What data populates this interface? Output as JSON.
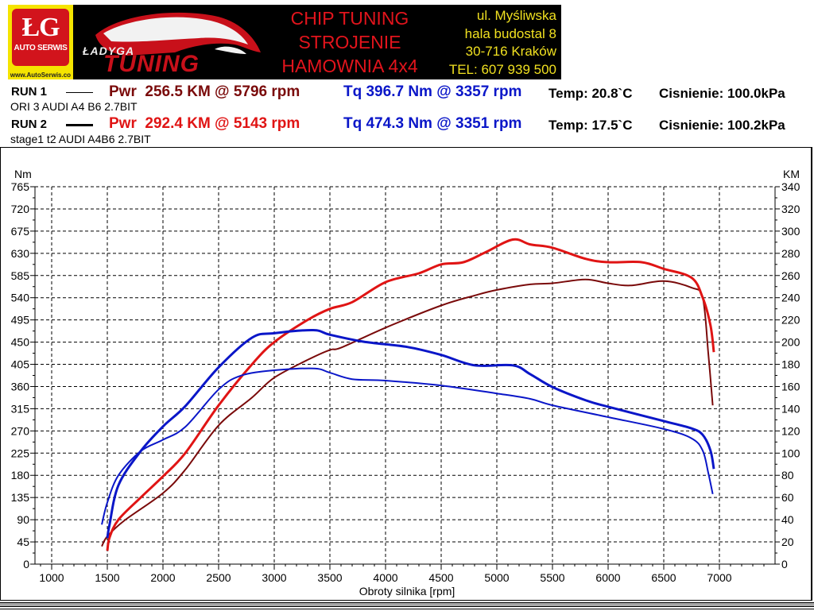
{
  "banner": {
    "logo": {
      "initials": "ŁG",
      "subtitle": "AUTO SERWIS",
      "url": "www.AutoSerwis.co"
    },
    "brand": {
      "top": "ŁADYGA",
      "bottom": "TUNING"
    },
    "services": [
      "CHIP TUNING",
      "STROJENIE",
      "HAMOWNIA 4x4"
    ],
    "address": [
      "ul. Myśliwska",
      "hala budostal 8",
      "30-716 Kraków",
      "TEL: 607 939 500"
    ]
  },
  "runs": [
    {
      "label": "RUN 1",
      "description": "ORI 3 AUDI A4 B6 2.7BIT",
      "power": "Pwr  256.5 KM @ 5796 rpm",
      "torque": "Tq 396.7 Nm @ 3357 rpm",
      "temp": "Temp: 20.8`C",
      "pressure": "Cisnienie: 100.0kPa",
      "power_color": "#7a0a0a",
      "torque_color": "#0a16c8"
    },
    {
      "label": "RUN 2",
      "description": "stage1 t2 AUDI A4B6 2.7BIT",
      "power": "Pwr  292.4 KM @ 5143 rpm",
      "torque": "Tq 474.3 Nm @ 3351 rpm",
      "temp": "Temp: 17.5`C",
      "pressure": "Cisnienie: 100.2kPa",
      "power_color": "#e01414",
      "torque_color": "#0a16c8"
    }
  ],
  "chart": {
    "left_unit": "Nm",
    "right_unit": "KM",
    "xlabel": "Obroty silnika [rpm]"
  },
  "chart_data": {
    "type": "line",
    "title": "",
    "xlabel": "Obroty silnika [rpm]",
    "ylabel": "Nm",
    "y2label": "KM",
    "xlim": [
      1000,
      7000
    ],
    "ylim": [
      0,
      765
    ],
    "y2lim": [
      0,
      340
    ],
    "x_ticks": [
      1000,
      1500,
      2000,
      2500,
      3000,
      3500,
      4000,
      4500,
      5000,
      5500,
      6000,
      6500,
      7000
    ],
    "y_ticks": [
      0,
      45,
      90,
      135,
      180,
      225,
      270,
      315,
      360,
      405,
      450,
      495,
      540,
      585,
      630,
      675,
      720,
      765
    ],
    "y2_ticks": [
      0,
      20,
      40,
      60,
      80,
      100,
      120,
      140,
      160,
      180,
      200,
      220,
      240,
      260,
      280,
      300,
      320,
      340
    ],
    "grid": true,
    "series": [
      {
        "name": "RUN 1 Power (KM)",
        "axis": "right",
        "color": "#7a0a0a",
        "width": 2,
        "x": [
          1450,
          1500,
          1650,
          2000,
          2200,
          2500,
          2800,
          3000,
          3300,
          3500,
          3600,
          4000,
          4500,
          4800,
          5000,
          5300,
          5500,
          5796,
          6000,
          6200,
          6500,
          6750,
          6850,
          6900,
          6940
        ],
        "values": [
          16,
          25,
          39,
          64,
          85,
          125,
          150,
          168,
          184,
          193,
          195,
          213,
          233,
          242,
          247,
          252,
          253,
          256.5,
          253,
          251,
          255,
          249,
          240,
          190,
          143
        ]
      },
      {
        "name": "RUN 2 Power (KM)",
        "axis": "right",
        "color": "#e01414",
        "width": 3,
        "x": [
          1500,
          1520,
          1600,
          1800,
          2000,
          2200,
          2500,
          2800,
          3000,
          3300,
          3500,
          3700,
          4000,
          4300,
          4500,
          4700,
          4900,
          5143,
          5300,
          5500,
          5800,
          6000,
          6300,
          6500,
          6750,
          6850,
          6920,
          6950
        ],
        "values": [
          12,
          24,
          40,
          60,
          79,
          100,
          143,
          180,
          200,
          220,
          230,
          236,
          254,
          262,
          270,
          272,
          281,
          292.4,
          288,
          285,
          275,
          272,
          272,
          266,
          258,
          240,
          215,
          191
        ]
      },
      {
        "name": "RUN 1 Torque (Nm)",
        "axis": "left",
        "color": "#0a16c8",
        "width": 2,
        "x": [
          1450,
          1500,
          1600,
          1800,
          2000,
          2200,
          2500,
          2700,
          3000,
          3357,
          3500,
          3700,
          4000,
          4500,
          5000,
          5300,
          5500,
          6000,
          6500,
          6750,
          6850,
          6900,
          6940
        ],
        "values": [
          80,
          125,
          180,
          229,
          252,
          278,
          354,
          382,
          393,
          396.7,
          388,
          375,
          372,
          362,
          346,
          335,
          322,
          298,
          274,
          255,
          230,
          185,
          142
        ]
      },
      {
        "name": "RUN 2 Torque (Nm)",
        "axis": "left",
        "color": "#0a16c8",
        "width": 3,
        "x": [
          1500,
          1520,
          1600,
          1800,
          2000,
          2200,
          2500,
          2800,
          3000,
          3351,
          3500,
          3800,
          4200,
          4500,
          4800,
          5143,
          5300,
          5500,
          5800,
          6000,
          6500,
          6750,
          6850,
          6920,
          6950
        ],
        "values": [
          53,
          80,
          160,
          229,
          279,
          320,
          399,
          459,
          468,
          474.3,
          465,
          451,
          440,
          424,
          403,
          403,
          385,
          359,
          332,
          319,
          290,
          275,
          262,
          230,
          193
        ]
      }
    ]
  }
}
